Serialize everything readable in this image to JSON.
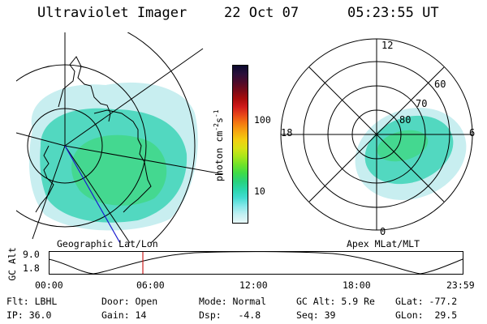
{
  "header": {
    "title": "Ultraviolet Imager",
    "date": "22 Oct 07",
    "time": "05:23:55 UT"
  },
  "left_panel": {
    "label": "Geographic Lat/Lon"
  },
  "right_panel": {
    "label": "Apex MLat/MLT",
    "mlt_labels": [
      "12",
      "18",
      "6",
      "0"
    ],
    "lat_labels": [
      "60",
      "70",
      "80"
    ]
  },
  "colorbar": {
    "unit_label": "photon cm-2s-1",
    "unit_main": "photon cm",
    "unit_sup1": "-2",
    "unit_mid": "s",
    "unit_sup2": "-1",
    "ticks": [
      "100",
      "10"
    ],
    "colors": [
      "#0b0a2e",
      "#2a0f3a",
      "#4d0a2a",
      "#780a18",
      "#a80c0c",
      "#d01a1a",
      "#e84818",
      "#f47a10",
      "#f6a810",
      "#f2cf10",
      "#d8e214",
      "#a8e61a",
      "#6ee22a",
      "#3fdc48",
      "#28d27c",
      "#2ad6ac",
      "#44dcd2",
      "#88e8ea",
      "#c2f0f2",
      "#e8f8f8"
    ]
  },
  "altitude_plot": {
    "ylabel": "GC Alt",
    "yticks": [
      "9.0",
      "1.8"
    ],
    "xticks": [
      "00:00",
      "06:00",
      "12:00",
      "18:00",
      "23:59"
    ]
  },
  "info": {
    "row1": [
      "Flt: LBHL",
      "Door: Open",
      "Mode: Normal",
      "GC Alt: 5.9 Re",
      "GLat: -77.2"
    ],
    "row2": [
      "IP: 36.0",
      "Gain: 14",
      "Dsp:   -4.8",
      "Seq: 39",
      "GLon:  29.5"
    ]
  }
}
